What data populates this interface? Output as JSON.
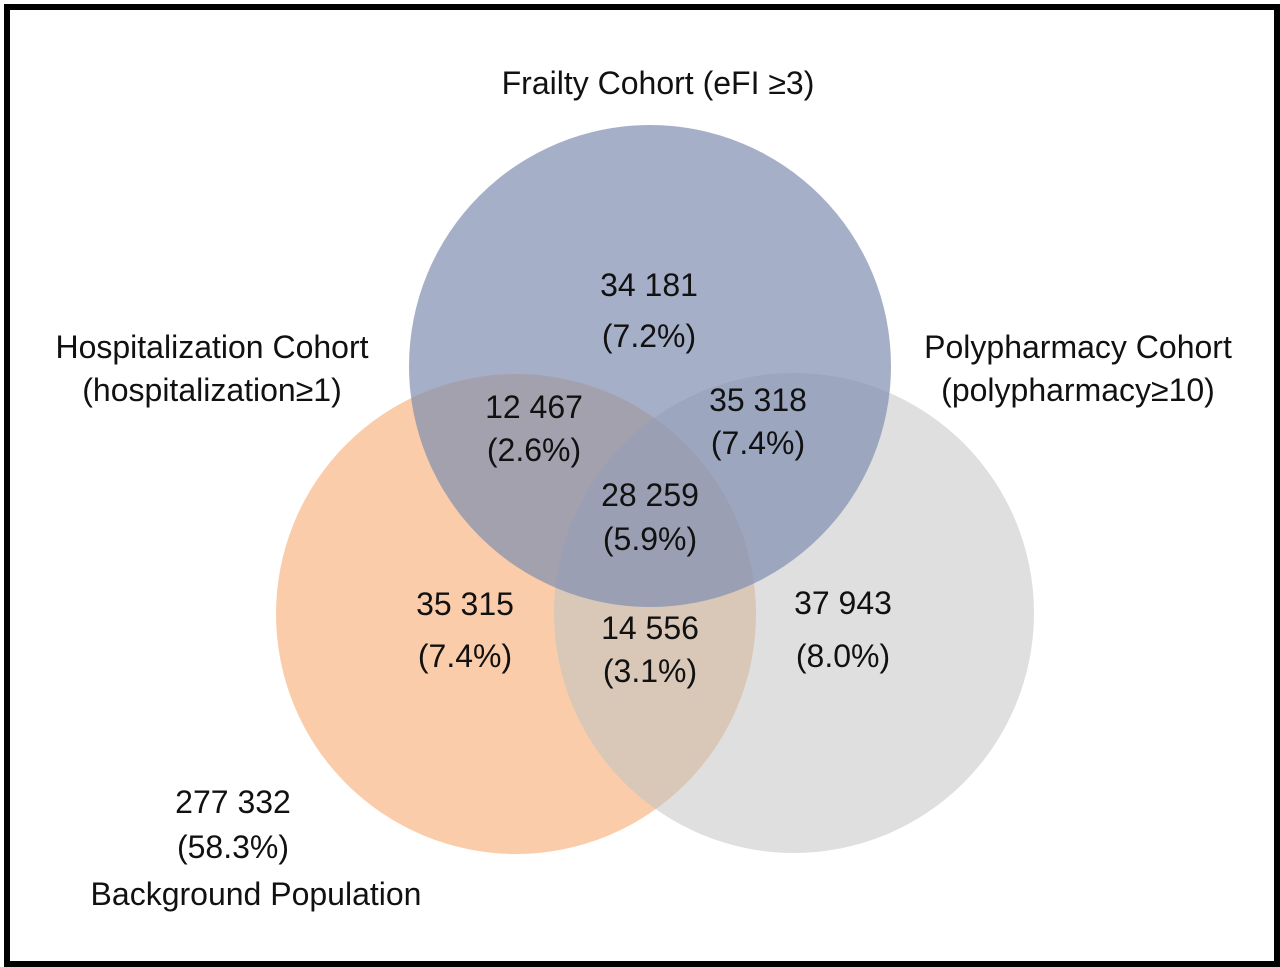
{
  "sets": {
    "frailty": {
      "label_line1": "Frailty Cohort (eFI ≥3)",
      "color": "#7f8fb0"
    },
    "hospitalization": {
      "label_line1": "Hospitalization Cohort",
      "label_line2": "(hospitalization≥1)",
      "color": "#f9c7a0"
    },
    "polypharmacy": {
      "label_line1": "Polypharmacy Cohort",
      "label_line2": "(polypharmacy≥10)",
      "color": "#dcdcdc"
    }
  },
  "regions": {
    "frailty_only": {
      "count": "34 181",
      "percent": "(7.2%)"
    },
    "hospitalization_only": {
      "count": "35 315",
      "percent": "(7.4%)"
    },
    "polypharmacy_only": {
      "count": "37 943",
      "percent": "(8.0%)"
    },
    "frailty_hospitalization": {
      "count": "12 467",
      "percent": "(2.6%)"
    },
    "frailty_polypharmacy": {
      "count": "35 318",
      "percent": "(7.4%)"
    },
    "hospitalization_polypharmacy": {
      "count": "14 556",
      "percent": "(3.1%)"
    },
    "all_three": {
      "count": "28 259",
      "percent": "(5.9%)"
    }
  },
  "background": {
    "count": "277 332",
    "percent": "(58.3%)",
    "label": "Background Population"
  }
}
